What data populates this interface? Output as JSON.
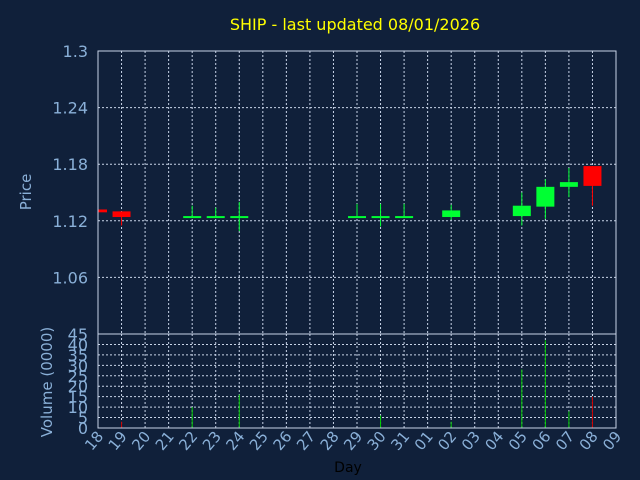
{
  "chart_data": [
    {
      "type": "candlestick",
      "title": "SHIP - last updated 08/01/2026",
      "ylabel": "Price",
      "ylim": [
        1.0,
        1.3
      ],
      "yticks": [
        "1.3",
        "1.24",
        "1.18",
        "1.12",
        "1.06"
      ],
      "grid": true,
      "candles": [
        {
          "x": "18",
          "open": 1.132,
          "high": 1.132,
          "low": 1.129,
          "close": 1.129
        },
        {
          "x": "19",
          "open": 1.13,
          "high": 1.13,
          "low": 1.115,
          "close": 1.124
        },
        {
          "x": "22",
          "open": 1.124,
          "high": 1.136,
          "low": 1.123,
          "close": 1.125
        },
        {
          "x": "23",
          "open": 1.124,
          "high": 1.134,
          "low": 1.123,
          "close": 1.125
        },
        {
          "x": "24",
          "open": 1.124,
          "high": 1.14,
          "low": 1.109,
          "close": 1.125
        },
        {
          "x": "29",
          "open": 1.124,
          "high": 1.138,
          "low": 1.123,
          "close": 1.125
        },
        {
          "x": "30",
          "open": 1.124,
          "high": 1.138,
          "low": 1.114,
          "close": 1.125
        },
        {
          "x": "31",
          "open": 1.124,
          "high": 1.138,
          "low": 1.123,
          "close": 1.125
        },
        {
          "x": "02",
          "open": 1.124,
          "high": 1.137,
          "low": 1.121,
          "close": 1.131
        },
        {
          "x": "05",
          "open": 1.125,
          "high": 1.15,
          "low": 1.115,
          "close": 1.136
        },
        {
          "x": "06",
          "open": 1.135,
          "high": 1.164,
          "low": 1.122,
          "close": 1.156
        },
        {
          "x": "07",
          "open": 1.156,
          "high": 1.176,
          "low": 1.145,
          "close": 1.161
        },
        {
          "x": "08",
          "open": 1.178,
          "high": 1.178,
          "low": 1.136,
          "close": 1.157
        }
      ]
    },
    {
      "type": "bar",
      "ylabel": "Volume (0000)",
      "xlabel": "Day",
      "ylim": [
        0,
        45
      ],
      "yticks": [
        "45",
        "40",
        "35",
        "30",
        "25",
        "20",
        "15",
        "10",
        "5",
        "0"
      ],
      "categories": [
        "18",
        "19",
        "20",
        "21",
        "22",
        "23",
        "24",
        "25",
        "26",
        "27",
        "28",
        "29",
        "30",
        "31",
        "01",
        "02",
        "03",
        "04",
        "05",
        "06",
        "07",
        "08",
        "09"
      ],
      "values": [
        0.5,
        3,
        0,
        0,
        10,
        0,
        16,
        0,
        0,
        0,
        0,
        0,
        6,
        0,
        0,
        3,
        0,
        0,
        28,
        42,
        8,
        15,
        0
      ],
      "colors": [
        "red",
        "red",
        "",
        "",
        "green",
        "",
        "green",
        "",
        "",
        "",
        "",
        "",
        "green",
        "",
        "",
        "green",
        "",
        "",
        "green",
        "green",
        "green",
        "red",
        ""
      ]
    }
  ],
  "colors": {
    "background": "#10203a",
    "title": "#ffff00",
    "axis_text": "#8ab0d8",
    "grid": "#c8d4e8",
    "up": "#00ff33",
    "down": "#ff0000",
    "volume_up": "#00cc00",
    "volume_down": "#cc0000"
  }
}
